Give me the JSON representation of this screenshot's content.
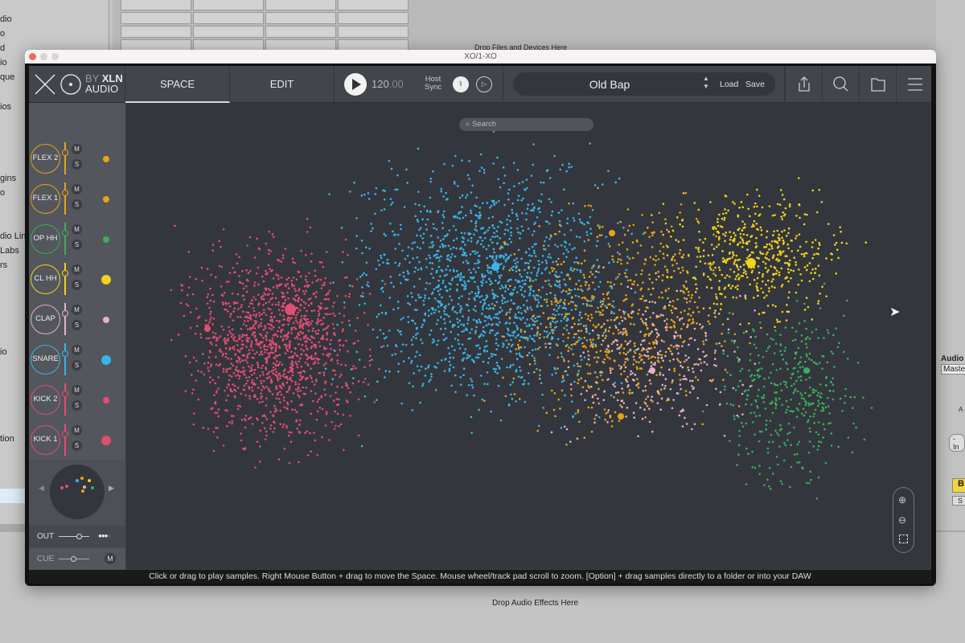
{
  "background": {
    "browser_fragments": [
      "dio",
      "o",
      "d",
      "io",
      "que",
      "ios",
      "gins",
      "o",
      "dio Line",
      "Labs",
      "rs",
      "io",
      "tion"
    ],
    "drop_files_label": "Drop Files and Devices Here",
    "drop_effects_label": "Drop Audio Effects Here",
    "mixer": {
      "track_label": "Audio",
      "routing": "Master",
      "knob_label": "A",
      "input": "-In",
      "b_button": "B",
      "s_button": "S"
    }
  },
  "window": {
    "title": "XO/1-XO"
  },
  "header": {
    "logo": "XO",
    "brand_by": "BY",
    "brand_xln": "XLN",
    "brand_audio": "AUDIO",
    "tabs": [
      {
        "label": "SPACE",
        "active": true
      },
      {
        "label": "EDIT",
        "active": false
      }
    ],
    "tempo_int": "120",
    "tempo_dec": ".00",
    "host_sync": [
      "Host",
      "Sync"
    ],
    "preset": "Old Bap",
    "load_label": "Load",
    "save_label": "Save",
    "icons": [
      "share-icon",
      "search-icon",
      "folder-icon",
      "menu-icon"
    ]
  },
  "channels": [
    {
      "label": "FLEX 2",
      "color": "#e8a317"
    },
    {
      "label": "FLEX 1",
      "color": "#e8a317"
    },
    {
      "label": "OP HH",
      "color": "#3cae5a"
    },
    {
      "label": "CL HH",
      "color": "#f2d21a"
    },
    {
      "label": "CLAP",
      "color": "#e3b1c8"
    },
    {
      "label": "SNARE",
      "color": "#3ab4e8"
    },
    {
      "label": "KICK 2",
      "color": "#e24d72"
    },
    {
      "label": "KICK 1",
      "color": "#e24d72"
    }
  ],
  "channel_buttons": {
    "mute": "M",
    "solo": "S"
  },
  "output": {
    "out_label": "OUT",
    "cue_label": "CUE",
    "cue_button": "M"
  },
  "map": {
    "search_placeholder": "Search"
  },
  "status_text": "Click or drag to play samples. Right Mouse Button + drag to move the Space. Mouse wheel/track pad scroll to zoom. [Option] + drag samples directly to a folder or into your DAW"
}
